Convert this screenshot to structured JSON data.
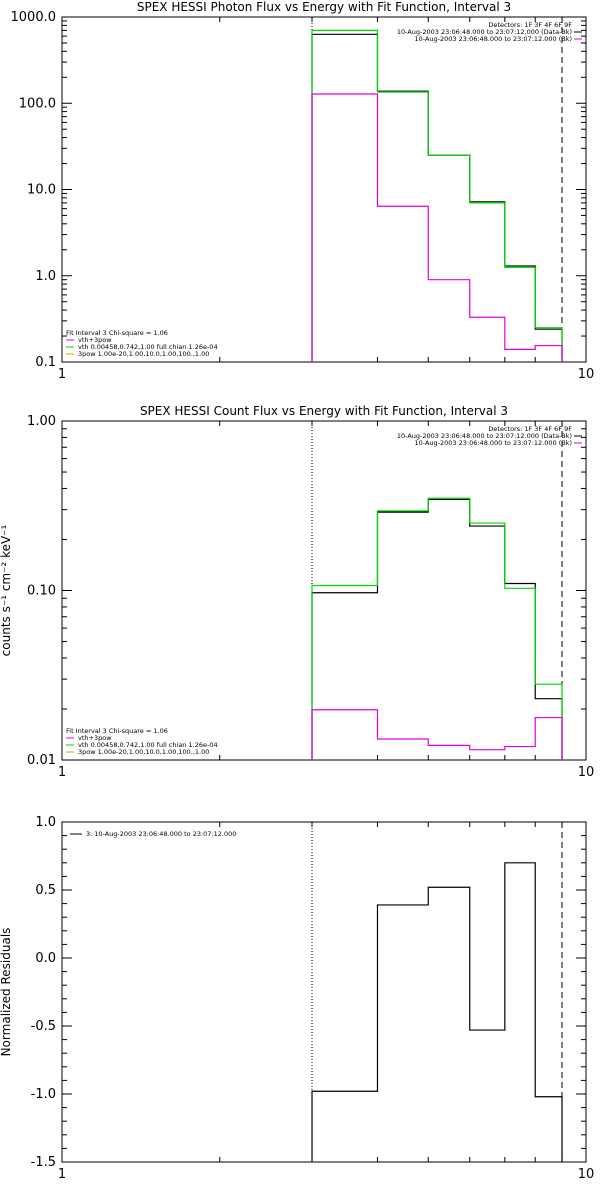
{
  "chart_data": [
    {
      "type": "line",
      "title": "SPEX HESSI Photon Flux vs Energy with Fit Function, Interval 3",
      "xlabel": "",
      "ylabel": "",
      "xscale": "log",
      "yscale": "log",
      "xlim": [
        1,
        10
      ],
      "ylim": [
        0.1,
        1000
      ],
      "x_ticks": [
        "1",
        "10"
      ],
      "y_ticks": [
        "0.1",
        "1.0",
        "10.0",
        "100.0",
        "1000.0"
      ],
      "bin_edges": [
        3,
        4,
        5,
        6,
        7,
        8,
        9
      ],
      "series": [
        {
          "color": "#000000",
          "values": [
            630,
            138,
            25,
            7.2,
            1.3,
            0.24
          ]
        },
        {
          "color": "#00d800",
          "values": [
            700,
            135,
            25,
            7.0,
            1.25,
            0.25
          ]
        },
        {
          "color": "#e000e0",
          "values": [
            128,
            6.4,
            0.9,
            0.33,
            0.14,
            0.155
          ]
        }
      ],
      "legend_top": [
        {
          "text": "Detectors: 1F 3F 4F 6F 9F",
          "color": ""
        },
        {
          "text": "10-Aug-2003 23:06:48.000 to 23:07:12.000 (Data-Bk)",
          "color": "#000000"
        },
        {
          "text": "10-Aug-2003 23:06:48.000 to 23:07:12.000 (Bk)",
          "color": "#e000e0"
        }
      ],
      "legend_bottom": [
        {
          "text": "Fit Interval 3   Chi-square = 1.06",
          "color": ""
        },
        {
          "text": "vth+3pow",
          "color": "#e000e0"
        },
        {
          "text": "vth 0.00458,0.742,1.00   full chian 1.26e-04",
          "color": "#00d800"
        },
        {
          "text": "3pow 1.00e-20,1.00,10.0,1.00,100.,1.00",
          "color": "#d8a000"
        }
      ]
    },
    {
      "type": "line",
      "title": "SPEX HESSI Count Flux vs Energy with Fit Function, Interval 3",
      "xlabel": "",
      "ylabel": "counts s⁻¹ cm⁻² keV⁻¹",
      "xscale": "log",
      "yscale": "log",
      "xlim": [
        1,
        10
      ],
      "ylim": [
        0.01,
        1
      ],
      "x_ticks": [
        "1",
        "10"
      ],
      "y_ticks": [
        "0.01",
        "0.10",
        "1.00"
      ],
      "bin_edges": [
        3,
        4,
        5,
        6,
        7,
        8,
        9
      ],
      "series": [
        {
          "color": "#000000",
          "values": [
            0.097,
            0.29,
            0.345,
            0.24,
            0.11,
            0.023
          ]
        },
        {
          "color": "#00d800",
          "values": [
            0.107,
            0.295,
            0.35,
            0.25,
            0.103,
            0.028
          ]
        },
        {
          "color": "#e000e0",
          "values": [
            0.0198,
            0.0133,
            0.0122,
            0.0115,
            0.012,
            0.0178
          ]
        }
      ],
      "legend_top": [
        {
          "text": "Detectors: 1F 3F 4F 6F 9F",
          "color": ""
        },
        {
          "text": "10-Aug-2003 23:06:48.000 to 23:07:12.000 (Data-Bk)",
          "color": "#000000"
        },
        {
          "text": "10-Aug-2003 23:06:48.000 to 23:07:12.000 (Bk)",
          "color": "#e000e0"
        }
      ],
      "legend_bottom": [
        {
          "text": "Fit Interval 3   Chi-square = 1.06",
          "color": ""
        },
        {
          "text": "vth+3pow",
          "color": "#e000e0"
        },
        {
          "text": "vth 0.00458,0.742,1.00   full chian 1.26e-04",
          "color": "#00d800"
        },
        {
          "text": "3pow 1.00e-20,1.00,10.0,1.00,100.,1.00",
          "color": "#d8a000"
        }
      ]
    },
    {
      "type": "line",
      "title": "",
      "xlabel": "",
      "ylabel": "Normalized Residuals",
      "xscale": "log",
      "yscale": "linear",
      "xlim": [
        1,
        10
      ],
      "ylim": [
        -1.5,
        1.0
      ],
      "x_ticks": [
        "1",
        "10"
      ],
      "y_ticks": [
        "1.0",
        "0.5",
        "0.0",
        "-0.5",
        "-1.0",
        "-1.5"
      ],
      "bin_edges": [
        3,
        4,
        5,
        6,
        7,
        8,
        9
      ],
      "series": [
        {
          "color": "#000000",
          "values": [
            -0.98,
            0.39,
            0.52,
            -0.53,
            0.7,
            -1.02
          ]
        }
      ],
      "legend_top": [
        {
          "text": "3. 10-Aug-2003 23:06:48.000 to 23:07:12.000",
          "color": "#000000"
        }
      ],
      "legend_bottom": []
    }
  ]
}
